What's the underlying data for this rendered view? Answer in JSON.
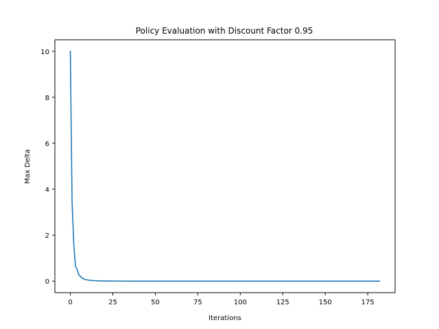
{
  "chart_data": {
    "type": "line",
    "title": "Policy Evaluation with Discount Factor 0.95",
    "xlabel": "Iterations",
    "ylabel": "Max Delta",
    "xlim": [
      -9.1,
      191.1
    ],
    "ylim": [
      -0.5,
      10.5
    ],
    "xticks": [
      0,
      25,
      50,
      75,
      100,
      125,
      150,
      175
    ],
    "yticks": [
      0,
      2,
      4,
      6,
      8,
      10
    ],
    "grid": false,
    "legend": "none",
    "series": [
      {
        "color": "#1f77b4",
        "x": [
          0,
          1,
          2,
          3,
          4,
          5,
          6,
          7,
          8,
          9,
          10,
          12,
          14,
          16,
          18,
          20,
          25,
          30,
          40,
          50,
          75,
          100,
          125,
          150,
          175,
          182
        ],
        "y": [
          10.0,
          3.5,
          1.65,
          0.65,
          0.5,
          0.28,
          0.2,
          0.13,
          0.09,
          0.07,
          0.055,
          0.035,
          0.022,
          0.015,
          0.01,
          0.008,
          0.005,
          0.003,
          0.002,
          0.001,
          0.0,
          0.0,
          0.0,
          0.0,
          0.0,
          0.0
        ]
      }
    ]
  }
}
